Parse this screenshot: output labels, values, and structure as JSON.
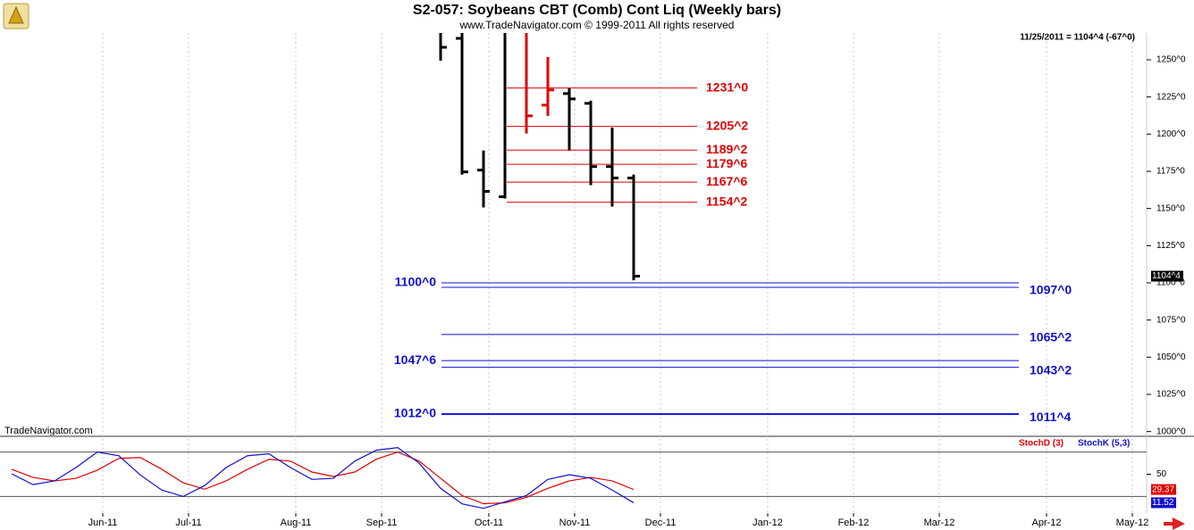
{
  "chart_data": [
    {
      "type": "ohlc",
      "title": "S2-057:  Soybeans CBT (Comb) Cont Liq  (Weekly bars)",
      "subtitle": "www.TradeNavigator.com © 1999-2011 All rights reserved",
      "info": "11/25/2011 = 1104^4 (-67^0)",
      "watermark": "TradeNavigator.com",
      "last_label": {
        "value": 1104.5,
        "label": "1104^4"
      },
      "ylim": [
        998,
        1268
      ],
      "yticks": [
        {
          "value": 1000,
          "label": "1000^0"
        },
        {
          "value": 1025,
          "label": "1025^0"
        },
        {
          "value": 1050,
          "label": "1050^0"
        },
        {
          "value": 1075,
          "label": "1075^0"
        },
        {
          "value": 1100,
          "label": "1100^0"
        },
        {
          "value": 1125,
          "label": "1125^0"
        },
        {
          "value": 1150,
          "label": "1150^0"
        },
        {
          "value": 1175,
          "label": "1175^0"
        },
        {
          "value": 1200,
          "label": "1200^0"
        },
        {
          "value": 1225,
          "label": "1225^0"
        },
        {
          "value": 1250,
          "label": "1250^0"
        }
      ],
      "open": [
        null,
        null,
        null,
        null,
        null,
        null,
        null,
        null,
        null,
        null,
        null,
        null,
        null,
        null,
        null,
        null,
        null,
        null,
        null,
        null,
        null,
        1264.4,
        1175.8,
        1157.9,
        null,
        1219.5,
        1227.3,
        1220.7,
        1178.2,
        1170.5,
        null,
        null,
        null,
        null,
        null,
        null,
        null,
        null,
        null,
        null,
        null,
        null,
        null,
        null,
        null,
        null,
        null,
        null,
        null,
        null,
        null,
        null,
        null
      ],
      "high": [
        null,
        null,
        null,
        null,
        null,
        null,
        null,
        null,
        null,
        null,
        null,
        null,
        null,
        null,
        null,
        null,
        null,
        null,
        null,
        null,
        1275,
        1275,
        1189,
        1275,
        1270,
        1251.8,
        1230.9,
        1222.5,
        1204.5,
        1172.8,
        null,
        null,
        null,
        null,
        null,
        null,
        null,
        null,
        null,
        null,
        null,
        null,
        null,
        null,
        null,
        null,
        null,
        null,
        null,
        null,
        null,
        null,
        null
      ],
      "low": [
        null,
        null,
        null,
        null,
        null,
        null,
        null,
        null,
        null,
        null,
        null,
        null,
        null,
        null,
        null,
        null,
        null,
        null,
        null,
        null,
        1249.4,
        1172.8,
        1150.7,
        1156.7,
        1200.4,
        1212.3,
        1189,
        1165.7,
        1151.3,
        1101.7,
        null,
        null,
        null,
        null,
        null,
        null,
        null,
        null,
        null,
        null,
        null,
        null,
        null,
        null,
        null,
        null,
        null,
        null,
        null,
        null,
        null,
        null,
        null
      ],
      "close": [
        null,
        null,
        null,
        null,
        null,
        null,
        null,
        null,
        null,
        null,
        null,
        null,
        null,
        null,
        null,
        null,
        null,
        null,
        null,
        null,
        1258.4,
        1174.6,
        1161.5,
        null,
        1212.3,
        1229.7,
        1223.7,
        1178.2,
        1170.5,
        1104.5,
        null,
        null,
        null,
        null,
        null,
        null,
        null,
        null,
        null,
        null,
        null,
        null,
        null,
        null,
        null,
        null,
        null,
        null,
        null,
        null,
        null,
        null,
        null
      ],
      "colors": [
        null,
        null,
        null,
        null,
        null,
        null,
        null,
        null,
        null,
        null,
        null,
        null,
        null,
        null,
        null,
        null,
        null,
        null,
        null,
        null,
        "#000000",
        "#000000",
        "#000000",
        "#000000",
        "#e00000",
        "#e00000",
        "#000000",
        "#000000",
        "#000000",
        "#000000",
        null,
        null,
        null,
        null,
        null,
        null,
        null,
        null,
        null,
        null,
        null,
        null,
        null,
        null,
        null,
        null,
        null,
        null,
        null,
        null,
        null,
        null,
        null
      ],
      "resistance_levels": {
        "color": "#e00000",
        "levels": [
          {
            "value": 1231,
            "label": "1231^0"
          },
          {
            "value": 1205.25,
            "label": "1205^2"
          },
          {
            "value": 1189.25,
            "label": "1189^2"
          },
          {
            "value": 1179.75,
            "label": "1179^6"
          },
          {
            "value": 1167.75,
            "label": "1167^6"
          },
          {
            "value": 1154.25,
            "label": "1154^2"
          }
        ]
      },
      "support_levels": {
        "color": "#1010d0",
        "levels": [
          {
            "value": 1100,
            "label": "1100^0",
            "side": "left"
          },
          {
            "value": 1097,
            "label": "1097^0",
            "side": "right"
          },
          {
            "value": 1065.25,
            "label": "1065^2",
            "side": "right"
          },
          {
            "value": 1047.75,
            "label": "1047^6",
            "side": "left"
          },
          {
            "value": 1043.25,
            "label": "1043^2",
            "side": "right"
          },
          {
            "value": 1012,
            "label": "1012^0",
            "side": "left"
          },
          {
            "value": 1011.5,
            "label": "1011^4",
            "side": "right"
          }
        ]
      }
    },
    {
      "type": "line",
      "categories": [
        null,
        null,
        null,
        null,
        "Jun-11",
        null,
        null,
        null,
        "Jul-11",
        null,
        null,
        null,
        null,
        "Aug-11",
        null,
        null,
        null,
        "Sep-11",
        null,
        null,
        null,
        null,
        "Oct-11",
        null,
        null,
        null,
        "Nov-11",
        null,
        null,
        null,
        "Dec-11",
        null,
        null,
        null,
        null,
        "Jan-12",
        null,
        null,
        null,
        "Feb-12",
        null,
        null,
        null,
        "Mar-12",
        null,
        null,
        null,
        null,
        "Apr-12",
        null,
        null,
        null,
        "May-12"
      ],
      "ylim": [
        0,
        100
      ],
      "yticks": [
        50
      ],
      "reference_lines": [
        20,
        80
      ],
      "series": [
        {
          "name": "StochD (3)",
          "color": "#e00000",
          "values": [
            56.7,
            45.7,
            41,
            44.5,
            55.5,
            71.4,
            72.6,
            56.7,
            38.4,
            29.8,
            41,
            56.7,
            70.2,
            67.7,
            53,
            47,
            53,
            70.2,
            80,
            67.7,
            44.5,
            21.2,
            10.2,
            11.4,
            18.8,
            31,
            41,
            45.7,
            41,
            29.37,
            null,
            null,
            null,
            null,
            null,
            null,
            null,
            null,
            null,
            null,
            null,
            null,
            null,
            null,
            null,
            null,
            null,
            null,
            null,
            null,
            null,
            null,
            null
          ]
        },
        {
          "name": "StochK (5,3)",
          "color": "#1010d0",
          "values": [
            50.6,
            36,
            41,
            59,
            80,
            75,
            49,
            28.6,
            20,
            34.7,
            59,
            75,
            77.5,
            59,
            43,
            44.5,
            67.7,
            82.4,
            86,
            65,
            31,
            10,
            4,
            12.7,
            21.2,
            43,
            49.4,
            44.5,
            28.6,
            11.52,
            null,
            null,
            null,
            null,
            null,
            null,
            null,
            null,
            null,
            null,
            null,
            null,
            null,
            null,
            null,
            null,
            null,
            null,
            null,
            null,
            null,
            null,
            null
          ]
        }
      ]
    }
  ]
}
